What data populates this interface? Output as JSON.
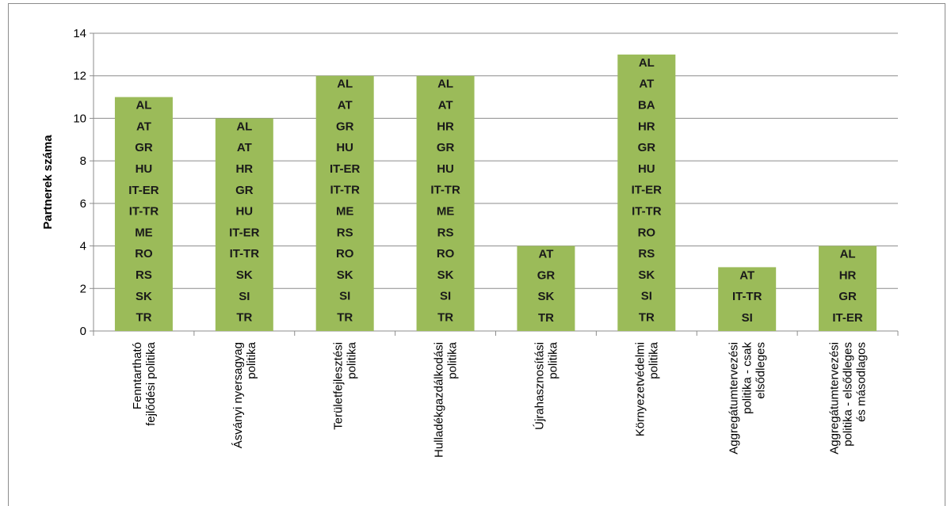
{
  "chart_data": {
    "type": "bar",
    "ylabel": "Partnerek száma",
    "ylim": [
      0,
      14
    ],
    "yticks": [
      0,
      2,
      4,
      6,
      8,
      10,
      12,
      14
    ],
    "grid": true,
    "bar_color": "#9bbb59",
    "categories": [
      [
        "Fenntartható",
        "fejlődési politika"
      ],
      [
        "Ásványi nyersagyag",
        "politika"
      ],
      [
        "Területfejlesztési",
        "politika"
      ],
      [
        "Hulladékgazdálkodási",
        "politika"
      ],
      [
        "Újrahasznosítási",
        "politika"
      ],
      [
        "Környezetvédelmi",
        "politika"
      ],
      [
        "Aggregátumtervezési",
        "politika - csak",
        "elsődleges"
      ],
      [
        "Aggregátumtervezési",
        "politika - elsődleges",
        "és másodlagos"
      ]
    ],
    "values": [
      11,
      10,
      12,
      12,
      4,
      13,
      3,
      4
    ],
    "bar_labels": [
      [
        "AL",
        "AT",
        "GR",
        "HU",
        "IT-ER",
        "IT-TR",
        "ME",
        "RO",
        "RS",
        "SK",
        "TR"
      ],
      [
        "AL",
        "AT",
        "HR",
        "GR",
        "HU",
        "IT-ER",
        "IT-TR",
        "SK",
        "SI",
        "TR"
      ],
      [
        "AL",
        "AT",
        "GR",
        "HU",
        "IT-ER",
        "IT-TR",
        "ME",
        "RS",
        "RO",
        "SK",
        "SI",
        "TR"
      ],
      [
        "AL",
        "AT",
        "HR",
        "GR",
        "HU",
        "IT-TR",
        "ME",
        "RS",
        "RO",
        "SK",
        "SI",
        "TR"
      ],
      [
        "AT",
        "GR",
        "SK",
        "TR"
      ],
      [
        "AL",
        "AT",
        "BA",
        "HR",
        "GR",
        "HU",
        "IT-ER",
        "IT-TR",
        "RO",
        "RS",
        "SK",
        "SI",
        "TR"
      ],
      [
        "AT",
        "IT-TR",
        "SI"
      ],
      [
        "AL",
        "HR",
        "GR",
        "IT-ER"
      ]
    ]
  }
}
